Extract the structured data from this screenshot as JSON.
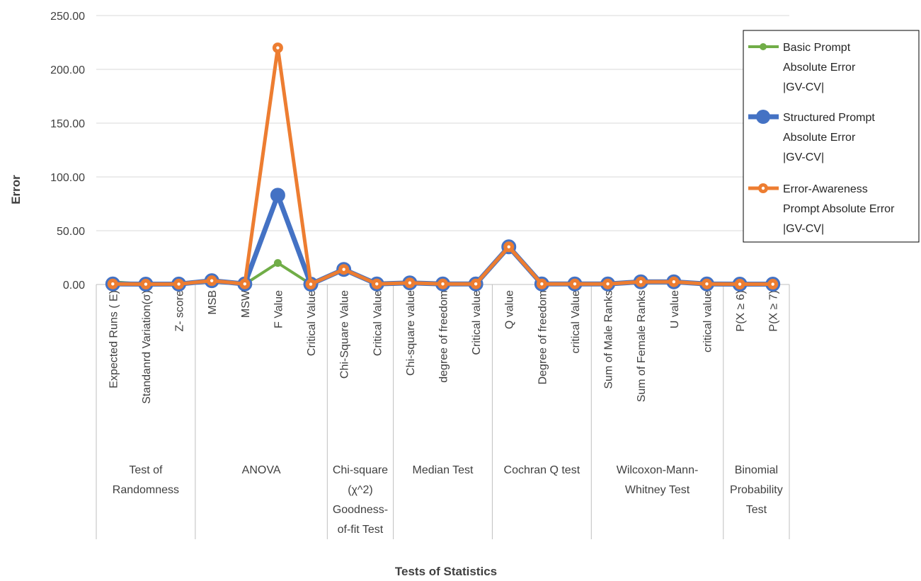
{
  "chart_data": {
    "type": "line",
    "title": "",
    "xlabel": "Tests of Statistics",
    "ylabel": "Error",
    "ylim": [
      0,
      250
    ],
    "y_ticks": [
      "0.00",
      "50.00",
      "100.00",
      "150.00",
      "200.00",
      "250.00"
    ],
    "grid": true,
    "legend_position": "right",
    "categories": [
      "Expected Runs ( E)",
      "Standanrd Variation(σ)",
      "Z- score",
      "MSB",
      "MSW",
      "F Value",
      "Critical Value",
      "Chi-Square Value",
      "Critical Value",
      "Chi-square value",
      "degree of freedom",
      "Critical value",
      "Q value",
      "Degree of freedom",
      "critical Value",
      "Sum of Male Ranks",
      "Sum of Female Ranks",
      "U value",
      "critical value",
      "P(X ≥ 6)",
      "P(X ≥ 7)"
    ],
    "groups": [
      {
        "label_lines": [
          "Test of",
          "Randomness"
        ],
        "count": 3
      },
      {
        "label_lines": [
          "ANOVA"
        ],
        "count": 4
      },
      {
        "label_lines": [
          "Chi-square",
          "(χ^2)",
          "Goodness-",
          "of-fit Test"
        ],
        "count": 2
      },
      {
        "label_lines": [
          "Median Test"
        ],
        "count": 3
      },
      {
        "label_lines": [
          "Cochran Q test"
        ],
        "count": 3
      },
      {
        "label_lines": [
          "Wilcoxon-Mann-",
          "Whitney Test"
        ],
        "count": 4
      },
      {
        "label_lines": [
          "Binomial",
          "Probability",
          "Test"
        ],
        "count": 2
      }
    ],
    "series": [
      {
        "name_lines": [
          "Basic  Prompt",
          "Absolute Error",
          "|GV-CV|"
        ],
        "color": "#70AD47",
        "values": [
          2.5,
          0.3,
          0.4,
          3.5,
          0.3,
          20,
          0.3,
          14,
          0.5,
          1.5,
          0.5,
          0.5,
          35,
          0.5,
          0.5,
          0.5,
          2.5,
          2.5,
          0.5,
          0.3,
          0.3
        ]
      },
      {
        "name_lines": [
          "Structured Prompt",
          "Absolute Error",
          "|GV-CV|"
        ],
        "color": "#4472C4",
        "values": [
          0.5,
          0.3,
          0.4,
          3.5,
          0.5,
          83,
          0.3,
          14,
          0.5,
          1.5,
          0.5,
          0.5,
          35,
          0.5,
          0.5,
          0.5,
          2.5,
          2.5,
          0.5,
          0.3,
          0.3
        ]
      },
      {
        "name_lines": [
          "Error-Awareness",
          "Prompt Absolute Error",
          "|GV-CV|"
        ],
        "color": "#ED7D31",
        "values": [
          0.5,
          0.3,
          0.4,
          3.5,
          0.5,
          220,
          0.3,
          14,
          0.5,
          1.5,
          0.5,
          0.5,
          35,
          0.5,
          0.5,
          0.5,
          2.5,
          2.5,
          0.5,
          0.3,
          0.3
        ]
      }
    ]
  }
}
